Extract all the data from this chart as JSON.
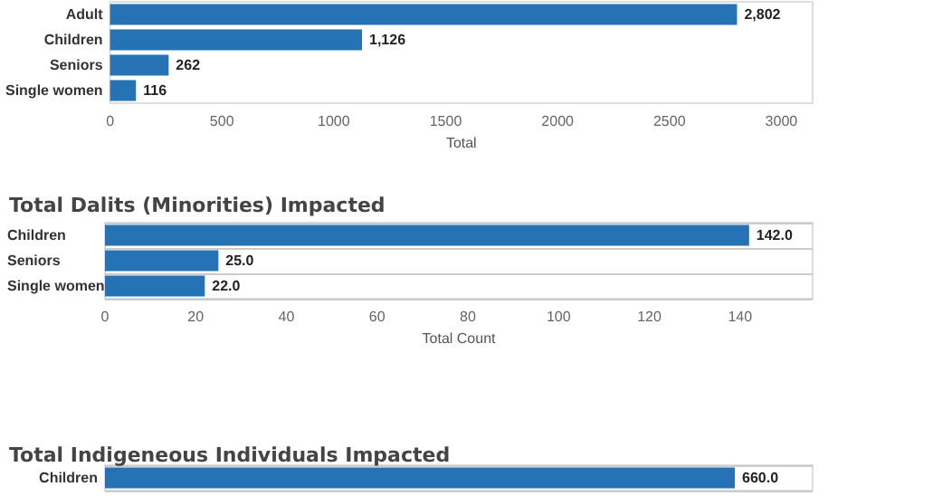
{
  "chart_data": [
    {
      "type": "bar",
      "orientation": "horizontal",
      "categories": [
        "Adult",
        "Children",
        "Seniors",
        "Single women"
      ],
      "values": [
        2802,
        1126,
        262,
        116
      ],
      "value_labels": [
        "2,802",
        "1,126",
        "262",
        "116"
      ],
      "color": "#2573b4",
      "xlabel": "Total",
      "xlim": [
        0,
        3140
      ],
      "xticks": [
        0,
        500,
        1000,
        1500,
        2000,
        2500,
        3000
      ],
      "grid": false
    },
    {
      "type": "bar",
      "orientation": "horizontal",
      "title": "Total Dalits (Minorities) Impacted",
      "categories": [
        "Children",
        "Seniors",
        "Single women"
      ],
      "values": [
        142.0,
        25.0,
        22.0
      ],
      "value_labels": [
        "142.0",
        "25.0",
        "22.0"
      ],
      "color": "#2573b4",
      "xlabel": "Total Count",
      "xlim": [
        0,
        156
      ],
      "xticks": [
        0,
        20,
        40,
        60,
        80,
        100,
        120,
        140
      ],
      "grid": "y"
    },
    {
      "type": "bar",
      "orientation": "horizontal",
      "title": "Total Indigeneous Individuals Impacted",
      "categories": [
        "Children"
      ],
      "values": [
        660.0
      ],
      "value_labels": [
        "660.0"
      ],
      "color": "#2573b4",
      "tick_labels": "y",
      "grid": "y"
    }
  ]
}
